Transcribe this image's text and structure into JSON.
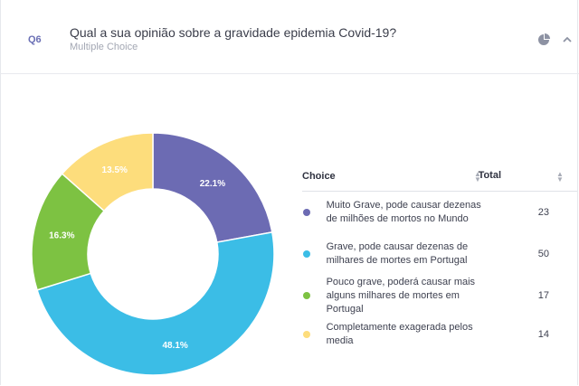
{
  "question": {
    "number": "Q6",
    "title": "Qual a sua opinião sobre a gravidade epidemia Covid-19?",
    "type": "Multiple Choice"
  },
  "icons": {
    "chart_toggle": "pie-chart-icon",
    "collapse": "chevron-up-icon",
    "sort": "sort-icon"
  },
  "table": {
    "headers": {
      "choice": "Choice",
      "total": "Total"
    },
    "rows": [
      {
        "label": "Muito Grave, pode causar dezenas de milhões de mortos no Mundo",
        "total": "23",
        "color": "#6c6bb3"
      },
      {
        "label": "Grave, pode causar dezenas de milhares de mortes em Portugal",
        "total": "50",
        "color": "#3bbde6"
      },
      {
        "label": "Pouco grave, poderá causar mais alguns milhares de mortes em Portugal",
        "total": "17",
        "color": "#7dc242"
      },
      {
        "label": "Completamente exagerada pelos media",
        "total": "14",
        "color": "#fddd7c"
      }
    ]
  },
  "chart_data": {
    "type": "pie",
    "style": "donut",
    "categories": [
      "Muito Grave, pode causar dezenas de milhões de mortos no Mundo",
      "Grave, pode causar dezenas de milhares de mortes em Portugal",
      "Pouco grave, poderá causar mais alguns milhares de mortes em Portugal",
      "Completamente exagerada pelos media"
    ],
    "values": [
      23,
      50,
      17,
      14
    ],
    "percent_labels": [
      "22.1%",
      "48.1%",
      "16.3%",
      "13.5%"
    ],
    "colors": [
      "#6c6bb3",
      "#3bbde6",
      "#7dc242",
      "#fddd7c"
    ],
    "title": "",
    "legend": "table-right"
  }
}
